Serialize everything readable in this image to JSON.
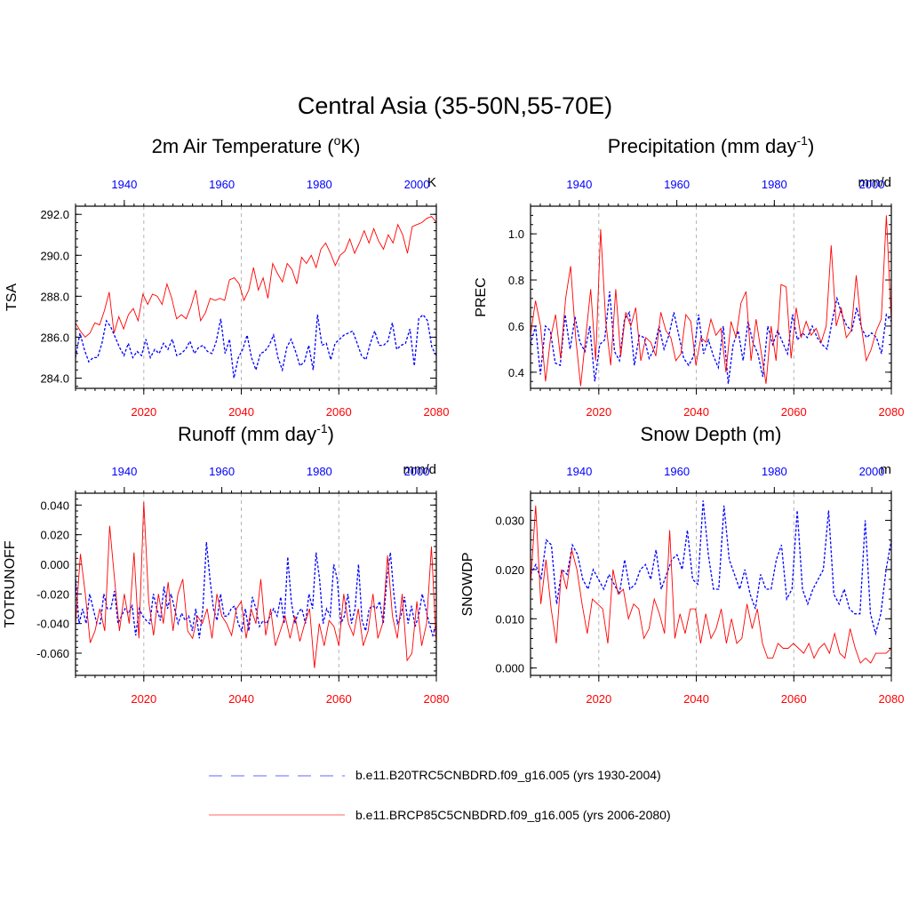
{
  "title": "Central Asia (35-50N,55-70E)",
  "colors": {
    "historical": "#0000ff",
    "future": "#ff0000",
    "frame": "#000000",
    "grid": "#b4b4b4"
  },
  "legend": {
    "historical_label": "b.e11.B20TRC5CNBDRD.f09_g16.005 (yrs 1930-2004)",
    "future_label": "b.e11.BRCP85C5CNBDRD.f09_g16.005 (yrs 2006-2080)"
  },
  "chart_data": [
    {
      "type": "line",
      "title_main": "2m Air Temperature (",
      "title_sup": "o",
      "title_end": "K)",
      "units": "K",
      "ylabel": "TSA",
      "ylim": [
        283.5,
        292.4
      ],
      "yticks": [
        "292.0",
        "290.0",
        "288.0",
        "286.0",
        "284.0"
      ],
      "yticks_values": [
        292,
        290,
        288,
        286,
        284
      ],
      "top_axis": {
        "years": [
          1930,
          2004
        ],
        "ticks": [
          "1940",
          "1960",
          "1980",
          "2000"
        ],
        "tick_values": [
          1940,
          1960,
          1980,
          2000
        ]
      },
      "bottom_axis": {
        "years": [
          2006,
          2080
        ],
        "ticks": [
          "2020",
          "2040",
          "2060",
          "2080"
        ],
        "tick_values": [
          2020,
          2040,
          2060,
          2080
        ]
      },
      "series": [
        {
          "name": "b.e11.B20TRC5CNBDRD.f09_g16.005",
          "style": "dashed",
          "color": "#0000ff",
          "values": [
            285.0,
            286.2,
            285.4,
            284.8,
            285.0,
            285.0,
            285.7,
            286.8,
            286.5,
            286.0,
            285.5,
            285.1,
            285.7,
            285.0,
            285.3,
            285.1,
            285.9,
            285.0,
            285.4,
            285.2,
            285.7,
            285.4,
            285.9,
            285.1,
            285.2,
            285.4,
            285.8,
            285.2,
            285.5,
            285.6,
            285.3,
            285.2,
            285.8,
            286.9,
            285.2,
            285.9,
            284.0,
            285.0,
            285.4,
            286.1,
            285.0,
            284.4,
            285.2,
            285.3,
            285.6,
            286.1,
            285.0,
            284.4,
            285.5,
            285.9,
            285.3,
            284.6,
            284.8,
            285.6,
            284.4,
            287.1,
            285.6,
            285.7,
            284.9,
            285.7,
            285.9,
            286.1,
            286.2,
            286.3,
            285.7,
            285.1,
            284.9,
            285.7,
            286.3,
            285.6,
            285.6,
            285.8,
            286.7,
            285.4,
            285.6,
            285.7,
            286.4,
            284.6,
            286.9,
            287.1,
            286.8,
            285.5,
            285.1
          ]
        },
        {
          "name": "b.e11.BRCP85C5CNBDRD.f09_g16.005",
          "style": "solid",
          "color": "#ff0000",
          "values": [
            286.7,
            286.3,
            286.0,
            286.2,
            286.7,
            286.6,
            287.3,
            288.2,
            286.2,
            287.0,
            286.4,
            287.1,
            287.4,
            286.8,
            288.1,
            287.6,
            288.1,
            288.0,
            287.6,
            288.6,
            287.9,
            286.9,
            287.1,
            286.9,
            287.5,
            288.3,
            286.8,
            287.2,
            287.9,
            287.8,
            287.9,
            287.8,
            288.8,
            288.9,
            288.6,
            287.8,
            288.3,
            289.4,
            288.3,
            288.9,
            287.9,
            289.6,
            289.1,
            288.7,
            289.6,
            289.3,
            288.6,
            289.9,
            289.6,
            290.0,
            289.4,
            290.3,
            290.6,
            290.1,
            289.5,
            290.0,
            290.2,
            290.8,
            290.1,
            290.6,
            291.2,
            290.6,
            291.3,
            290.7,
            290.3,
            291.0,
            290.6,
            291.5,
            291.0,
            290.1,
            291.4,
            291.5,
            291.6,
            291.8,
            291.9,
            291.6
          ]
        }
      ]
    },
    {
      "type": "line",
      "title_main": "Precipitation (mm day",
      "title_sup": "-1",
      "title_end": ")",
      "units": "mm/d",
      "ylabel": "PREC",
      "ylim": [
        0.33,
        1.12
      ],
      "yticks": [
        "1.0",
        "0.8",
        "0.6",
        "0.4"
      ],
      "yticks_values": [
        1.0,
        0.8,
        0.6,
        0.4
      ],
      "top_axis": {
        "years": [
          1930,
          2004
        ],
        "ticks": [
          "1940",
          "1960",
          "1980",
          "2000"
        ],
        "tick_values": [
          1940,
          1960,
          1980,
          2000
        ]
      },
      "bottom_axis": {
        "years": [
          2006,
          2080
        ],
        "ticks": [
          "2020",
          "2040",
          "2060",
          "2080"
        ],
        "tick_values": [
          2020,
          2040,
          2060,
          2080
        ]
      },
      "series": [
        {
          "name": "b.e11.B20TRC5CNBDRD.f09_g16.005",
          "style": "dashed",
          "color": "#0000ff",
          "values": [
            0.52,
            0.6,
            0.39,
            0.6,
            0.58,
            0.44,
            0.43,
            0.65,
            0.5,
            0.64,
            0.53,
            0.49,
            0.6,
            0.36,
            0.52,
            0.54,
            0.75,
            0.49,
            0.45,
            0.63,
            0.66,
            0.43,
            0.56,
            0.55,
            0.46,
            0.5,
            0.6,
            0.5,
            0.56,
            0.66,
            0.56,
            0.46,
            0.43,
            0.47,
            0.65,
            0.48,
            0.54,
            0.47,
            0.42,
            0.6,
            0.35,
            0.52,
            0.58,
            0.45,
            0.62,
            0.53,
            0.48,
            0.38,
            0.6,
            0.52,
            0.58,
            0.53,
            0.48,
            0.65,
            0.54,
            0.57,
            0.55,
            0.6,
            0.55,
            0.52,
            0.5,
            0.62,
            0.72,
            0.65,
            0.6,
            0.58,
            0.68,
            0.59,
            0.55,
            0.57,
            0.55,
            0.48,
            0.65,
            0.62
          ]
        },
        {
          "name": "b.e11.BRCP85C5CNBDRD.f09_g16.005",
          "style": "solid",
          "color": "#ff0000",
          "values": [
            0.56,
            0.71,
            0.6,
            0.36,
            0.55,
            0.65,
            0.46,
            0.72,
            0.86,
            0.55,
            0.34,
            0.55,
            0.76,
            0.45,
            1.02,
            0.62,
            0.43,
            0.76,
            0.47,
            0.66,
            0.6,
            0.68,
            0.45,
            0.55,
            0.53,
            0.47,
            0.66,
            0.58,
            0.55,
            0.45,
            0.48,
            0.65,
            0.62,
            0.43,
            0.55,
            0.53,
            0.63,
            0.56,
            0.59,
            0.4,
            0.62,
            0.55,
            0.7,
            0.75,
            0.45,
            0.63,
            0.49,
            0.35,
            0.6,
            0.45,
            0.78,
            0.77,
            0.46,
            0.68,
            0.55,
            0.62,
            0.56,
            0.59,
            0.53,
            0.6,
            0.95,
            0.6,
            0.68,
            0.55,
            0.58,
            0.82,
            0.6,
            0.45,
            0.5,
            0.58,
            0.63,
            1.08,
            0.62
          ]
        }
      ]
    },
    {
      "type": "line",
      "title_main": "Runoff (mm day",
      "title_sup": "-1",
      "title_end": ")",
      "units": "mm/d",
      "ylabel": "TOTRUNOFF",
      "ylim": [
        -0.075,
        0.048
      ],
      "yticks": [
        "0.040",
        "0.020",
        "0.000",
        "-0.020",
        "-0.040",
        "-0.060"
      ],
      "yticks_values": [
        0.04,
        0.02,
        0.0,
        -0.02,
        -0.04,
        -0.06
      ],
      "top_axis": {
        "years": [
          1930,
          2004
        ],
        "ticks": [
          "1940",
          "1960",
          "1980",
          "2000"
        ],
        "tick_values": [
          1940,
          1960,
          1980,
          2000
        ]
      },
      "bottom_axis": {
        "years": [
          2006,
          2080
        ],
        "ticks": [
          "2020",
          "2040",
          "2060",
          "2080"
        ],
        "tick_values": [
          2020,
          2040,
          2060,
          2080
        ]
      },
      "series": [
        {
          "name": "b.e11.B20TRC5CNBDRD.f09_g16.005",
          "style": "dashed",
          "color": "#0000ff",
          "values": [
            -0.01,
            -0.04,
            -0.03,
            -0.04,
            -0.02,
            -0.03,
            -0.04,
            -0.04,
            -0.02,
            -0.03,
            -0.03,
            -0.018,
            -0.04,
            -0.035,
            -0.03,
            -0.033,
            -0.028,
            -0.048,
            -0.03,
            -0.035,
            -0.038,
            -0.04,
            -0.02,
            -0.03,
            -0.038,
            -0.015,
            -0.03,
            -0.02,
            -0.03,
            -0.04,
            -0.033,
            -0.038,
            -0.035,
            -0.045,
            -0.03,
            -0.05,
            -0.03,
            0.015,
            -0.01,
            -0.03,
            -0.038,
            -0.02,
            -0.035,
            -0.035,
            -0.03,
            -0.028,
            -0.04,
            -0.045,
            -0.03,
            -0.045,
            -0.022,
            -0.03,
            -0.042,
            -0.038,
            -0.04,
            -0.035,
            -0.03,
            -0.035,
            -0.022,
            -0.04,
            0.005,
            -0.025,
            -0.04,
            -0.032,
            -0.03,
            -0.04,
            -0.02,
            -0.03,
            0.008,
            -0.01,
            -0.04,
            -0.03,
            -0.035,
            0.0,
            -0.01,
            -0.04,
            -0.035,
            -0.02,
            -0.04,
            -0.03,
            0.0,
            -0.038,
            -0.045,
            -0.03,
            -0.028,
            -0.03,
            -0.025,
            -0.04,
            -0.01,
            0.008,
            -0.02,
            -0.04,
            -0.035,
            -0.022,
            -0.04,
            -0.028,
            -0.042,
            -0.035,
            -0.02,
            -0.03,
            -0.04,
            -0.048,
            -0.04
          ]
        },
        {
          "name": "b.e11.BRCP85C5CNBDRD.f09_g16.005",
          "style": "solid",
          "color": "#ff0000",
          "values": [
            -0.04,
            0.007,
            -0.02,
            -0.053,
            -0.045,
            -0.03,
            -0.045,
            0.026,
            -0.01,
            -0.045,
            -0.02,
            -0.04,
            0.008,
            -0.05,
            0.042,
            -0.025,
            -0.048,
            -0.02,
            -0.04,
            -0.012,
            -0.045,
            -0.02,
            -0.01,
            -0.045,
            -0.05,
            -0.035,
            -0.04,
            -0.03,
            -0.05,
            -0.02,
            -0.035,
            -0.04,
            -0.048,
            -0.03,
            -0.025,
            -0.05,
            -0.03,
            -0.04,
            -0.01,
            -0.048,
            -0.03,
            -0.055,
            -0.045,
            -0.035,
            -0.05,
            -0.035,
            -0.052,
            -0.04,
            -0.03,
            -0.07,
            -0.04,
            -0.055,
            -0.038,
            -0.042,
            -0.055,
            -0.02,
            -0.04,
            -0.048,
            -0.03,
            -0.055,
            -0.045,
            -0.02,
            -0.05,
            -0.04,
            0.006,
            -0.035,
            -0.05,
            -0.02,
            -0.065,
            -0.06,
            -0.025,
            -0.055,
            -0.04,
            0.012,
            -0.055
          ]
        }
      ]
    },
    {
      "type": "line",
      "title_main": "Snow Depth (m)",
      "title_sup": "",
      "title_end": "",
      "units": "m",
      "ylabel": "SNOWDP",
      "ylim": [
        -0.0015,
        0.0355
      ],
      "yticks": [
        "0.030",
        "0.020",
        "0.010",
        "0.000"
      ],
      "yticks_values": [
        0.03,
        0.02,
        0.01,
        0.0
      ],
      "top_axis": {
        "years": [
          1930,
          2004
        ],
        "ticks": [
          "1940",
          "1960",
          "1980",
          "2000"
        ],
        "tick_values": [
          1940,
          1960,
          1980,
          2000
        ]
      },
      "bottom_axis": {
        "years": [
          2006,
          2080
        ],
        "ticks": [
          "2020",
          "2040",
          "2060",
          "2080"
        ],
        "tick_values": [
          2020,
          2040,
          2060,
          2080
        ]
      },
      "series": [
        {
          "name": "b.e11.B20TRC5CNBDRD.f09_g16.005",
          "style": "dashed",
          "color": "#0000ff",
          "values": [
            0.019,
            0.021,
            0.018,
            0.026,
            0.025,
            0.013,
            0.02,
            0.019,
            0.025,
            0.023,
            0.018,
            0.016,
            0.02,
            0.018,
            0.016,
            0.019,
            0.017,
            0.015,
            0.022,
            0.016,
            0.017,
            0.02,
            0.021,
            0.018,
            0.024,
            0.016,
            0.019,
            0.022,
            0.023,
            0.02,
            0.028,
            0.018,
            0.017,
            0.034,
            0.023,
            0.016,
            0.016,
            0.033,
            0.022,
            0.019,
            0.016,
            0.02,
            0.015,
            0.012,
            0.019,
            0.016,
            0.016,
            0.022,
            0.025,
            0.014,
            0.016,
            0.032,
            0.016,
            0.013,
            0.016,
            0.018,
            0.02,
            0.032,
            0.015,
            0.013,
            0.016,
            0.012,
            0.011,
            0.011,
            0.03,
            0.011,
            0.007,
            0.011,
            0.02,
            0.026
          ]
        },
        {
          "name": "b.e11.BRCP85C5CNBDRD.f09_g16.005",
          "style": "solid",
          "color": "#ff0000",
          "values": [
            0.017,
            0.033,
            0.013,
            0.022,
            0.012,
            0.005,
            0.02,
            0.016,
            0.024,
            0.02,
            0.013,
            0.007,
            0.014,
            0.013,
            0.012,
            0.005,
            0.02,
            0.015,
            0.016,
            0.01,
            0.013,
            0.012,
            0.006,
            0.008,
            0.014,
            0.011,
            0.007,
            0.028,
            0.006,
            0.011,
            0.007,
            0.012,
            0.012,
            0.005,
            0.011,
            0.006,
            0.008,
            0.012,
            0.005,
            0.01,
            0.005,
            0.006,
            0.013,
            0.008,
            0.012,
            0.005,
            0.002,
            0.002,
            0.005,
            0.004,
            0.004,
            0.005,
            0.004,
            0.003,
            0.005,
            0.002,
            0.004,
            0.005,
            0.003,
            0.007,
            0.003,
            0.002,
            0.008,
            0.004,
            0.001,
            0.002,
            0.001,
            0.003,
            0.003,
            0.003,
            0.004
          ]
        }
      ]
    }
  ]
}
